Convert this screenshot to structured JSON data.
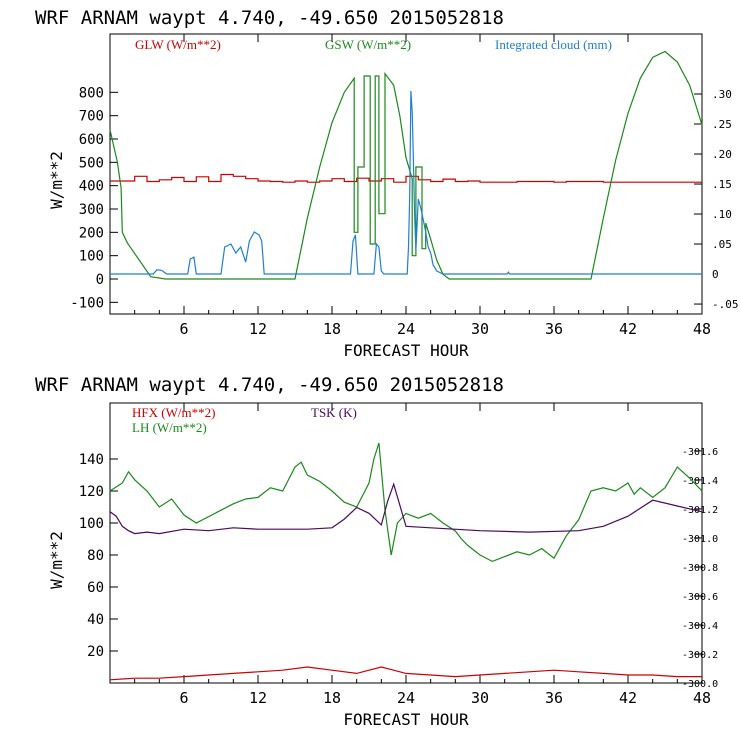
{
  "colors": {
    "red": "#cc0000",
    "green": "#1a8a1a",
    "blue": "#1f7fd0",
    "purple": "#4b0a5e",
    "axis": "#000000"
  },
  "chart_data": [
    {
      "type": "line",
      "title": "WRF   ARNAM waypt    4.740, -49.650  2015052818",
      "xlabel": "FORECAST HOUR",
      "ylabel": "W/m**2",
      "xlim": [
        0,
        48
      ],
      "ylim": [
        -150,
        1050
      ],
      "y2lim": [
        -0.0666,
        0.4
      ],
      "xticks": [
        "6",
        "12",
        "18",
        "24",
        "30",
        "36",
        "42",
        "48"
      ],
      "yticks": [
        "-100",
        "0",
        "100",
        "200",
        "300",
        "400",
        "500",
        "600",
        "700",
        "800"
      ],
      "y2ticks": [
        "-.05",
        "0",
        ".05",
        ".10",
        ".15",
        ".20",
        ".25",
        ".30"
      ],
      "legend_placement": "top",
      "series": [
        {
          "name": "GLW (W/m**2)",
          "color": "red",
          "axis": "left",
          "x": [
            0,
            1,
            2,
            2,
            3,
            3,
            4,
            4,
            5,
            5,
            6,
            6,
            7,
            7,
            8,
            8,
            9,
            9,
            10,
            10,
            11,
            11,
            12,
            12,
            13,
            13,
            14,
            14,
            15,
            15,
            16,
            16,
            17,
            17,
            18,
            18,
            19,
            19,
            20,
            20,
            21,
            21,
            22,
            22,
            23,
            23,
            24,
            24,
            25,
            25,
            26,
            26,
            27,
            27,
            28,
            28,
            29,
            29,
            30,
            30,
            33,
            33,
            36,
            36,
            37,
            37,
            40,
            40,
            44,
            44,
            48
          ],
          "values": [
            420,
            420,
            420,
            440,
            440,
            418,
            418,
            425,
            425,
            435,
            435,
            418,
            418,
            438,
            438,
            418,
            418,
            448,
            448,
            440,
            440,
            430,
            430,
            420,
            420,
            418,
            418,
            415,
            415,
            420,
            420,
            415,
            415,
            420,
            420,
            430,
            430,
            418,
            418,
            432,
            432,
            420,
            420,
            430,
            430,
            415,
            415,
            440,
            440,
            425,
            425,
            418,
            418,
            428,
            428,
            418,
            418,
            420,
            420,
            415,
            415,
            418,
            418,
            415,
            415,
            418,
            418,
            415,
            415,
            415,
            415
          ]
        },
        {
          "name": "GSW (W/m**2)",
          "color": "green",
          "axis": "left",
          "x": [
            0,
            0.6,
            0.9,
            1.0,
            1.4,
            3.3,
            4.5,
            15.0,
            16.0,
            17.0,
            18.0,
            19.0,
            19.8,
            19.8,
            20.1,
            20.1,
            20.6,
            20.6,
            21.1,
            21.1,
            21.5,
            21.5,
            21.8,
            21.8,
            22.3,
            22.3,
            23.0,
            23.5,
            24.0,
            24.5,
            24.5,
            24.8,
            24.8,
            25.3,
            25.3,
            25.6,
            25.6,
            26.0,
            26.5,
            27.0,
            27.5,
            28.0,
            39.0,
            40.0,
            41.0,
            42.0,
            43.0,
            44.0,
            45.0,
            46.0,
            47.0,
            48.0
          ],
          "values": [
            640,
            500,
            390,
            200,
            155,
            10,
            0,
            0,
            260,
            480,
            670,
            800,
            860,
            200,
            200,
            480,
            480,
            870,
            870,
            150,
            150,
            870,
            870,
            280,
            280,
            880,
            830,
            700,
            520,
            430,
            100,
            100,
            480,
            480,
            130,
            130,
            240,
            170,
            80,
            20,
            0,
            0,
            0,
            260,
            510,
            710,
            860,
            950,
            975,
            930,
            830,
            660
          ]
        },
        {
          "name": "Integrated cloud (mm)",
          "color": "blue",
          "axis": "right",
          "x": [
            0,
            3.5,
            3.8,
            4.2,
            4.6,
            6.3,
            6.5,
            6.8,
            7.0,
            9.0,
            9.3,
            9.8,
            10.2,
            10.6,
            11.0,
            11.3,
            11.7,
            12.1,
            12.3,
            12.5,
            19.5,
            19.7,
            19.9,
            20.1,
            21.4,
            21.6,
            21.8,
            22.0,
            22.2,
            24.1,
            24.2,
            24.3,
            24.4,
            24.5,
            24.6,
            24.7,
            24.8,
            25.0,
            25.2,
            25.4,
            25.6,
            25.8,
            26.0,
            26.2,
            26.5,
            27.0,
            32.2,
            32.3,
            32.4,
            48.0
          ],
          "values": [
            0,
            0,
            0.007,
            0.006,
            0,
            0,
            0.025,
            0.028,
            0,
            0,
            0.045,
            0.05,
            0.035,
            0.045,
            0.02,
            0.055,
            0.07,
            0.065,
            0.055,
            0,
            0,
            0.055,
            0.065,
            0,
            0,
            0.05,
            0.045,
            0.005,
            0,
            0,
            0.045,
            0.13,
            0.305,
            0.27,
            0.19,
            0.1,
            0.04,
            0.125,
            0.11,
            0.09,
            0.07,
            0.045,
            0.035,
            0.015,
            0.005,
            0,
            0,
            0.003,
            0,
            0
          ]
        }
      ]
    },
    {
      "type": "line",
      "title": "WRF   ARNAM waypt    4.740, -49.650  2015052818",
      "xlabel": "FORECAST HOUR",
      "ylabel": "W/m**2",
      "xlim": [
        0,
        48
      ],
      "ylim": [
        0,
        175
      ],
      "y2lim": [
        300.0,
        301.93
      ],
      "xticks": [
        "6",
        "12",
        "18",
        "24",
        "30",
        "36",
        "42",
        "48"
      ],
      "yticks": [
        "20",
        "40",
        "60",
        "80",
        "100",
        "120",
        "140"
      ],
      "y2ticks": [
        "-300.0",
        "-300.2",
        "-300.4",
        "-300.6",
        "-300.8",
        "-301.0",
        "-301.2",
        "-301.4",
        "-301.6"
      ],
      "legend_placement": "top-left",
      "series": [
        {
          "name": "HFX (W/m**2)",
          "color": "red",
          "axis": "left",
          "x": [
            0,
            2,
            4,
            6,
            8,
            10,
            12,
            14,
            16,
            18,
            20,
            21,
            22,
            23,
            24,
            26,
            28,
            30,
            32,
            34,
            36,
            38,
            40,
            42,
            44,
            46,
            48
          ],
          "values": [
            2,
            3,
            3,
            4,
            5,
            6,
            7,
            8,
            10,
            8,
            6,
            8,
            10,
            8,
            6,
            5,
            4,
            5,
            6,
            7,
            8,
            7,
            6,
            5,
            5,
            4,
            4
          ]
        },
        {
          "name": "LH (W/m**2)",
          "color": "green",
          "axis": "left",
          "x": [
            0,
            1,
            1.5,
            2,
            3,
            4,
            5,
            6,
            7,
            8,
            9,
            10,
            11,
            12,
            13,
            14,
            15,
            15.5,
            16,
            17,
            18,
            19,
            20,
            21,
            21.4,
            21.8,
            22.3,
            22.8,
            23.3,
            24,
            25,
            26,
            27,
            28,
            28.5,
            29,
            30,
            31,
            32,
            33,
            34,
            35,
            36,
            37,
            38,
            38.5,
            39,
            40,
            41,
            42,
            42.5,
            43,
            44,
            45,
            46,
            47,
            48
          ],
          "values": [
            120,
            125,
            132,
            127,
            120,
            110,
            115,
            105,
            100,
            104,
            108,
            112,
            115,
            116,
            122,
            120,
            135,
            138,
            130,
            126,
            120,
            113,
            110,
            125,
            140,
            150,
            108,
            80,
            100,
            106,
            103,
            106,
            100,
            95,
            90,
            86,
            80,
            76,
            79,
            82,
            80,
            84,
            78,
            92,
            102,
            111,
            120,
            122,
            120,
            125,
            118,
            122,
            116,
            122,
            135,
            128,
            120
          ]
        },
        {
          "name": "TSK (K)",
          "color": "purple",
          "axis": "right",
          "x": [
            0,
            0.5,
            1,
            1.5,
            2,
            3,
            4,
            6,
            8,
            10,
            12,
            14,
            16,
            18,
            19,
            20,
            21,
            22,
            22.5,
            23,
            24,
            26,
            30,
            34,
            38,
            40,
            42,
            44,
            46,
            48
          ],
          "values": [
            301.18,
            301.15,
            301.08,
            301.05,
            301.03,
            301.04,
            301.03,
            301.06,
            301.05,
            301.07,
            301.06,
            301.06,
            301.06,
            301.07,
            301.13,
            301.21,
            301.17,
            301.09,
            301.25,
            301.37,
            301.08,
            301.07,
            301.05,
            301.04,
            301.05,
            301.08,
            301.15,
            301.26,
            301.22,
            301.18
          ]
        }
      ]
    }
  ]
}
